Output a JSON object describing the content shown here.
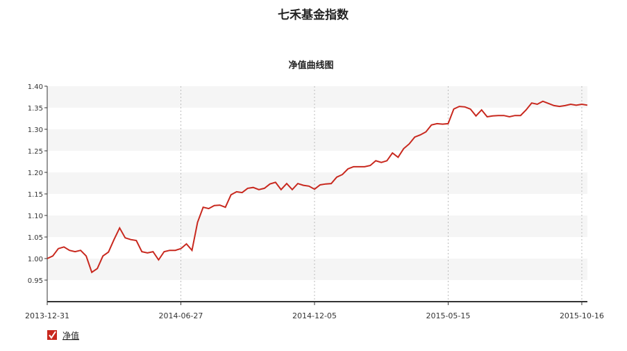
{
  "chart_data": {
    "type": "line",
    "title": "七禾基金指数",
    "subtitle": "净值曲线图",
    "categories": [
      "2013-12-31",
      null,
      null,
      null,
      null,
      null,
      null,
      null,
      null,
      null,
      null,
      null,
      null,
      null,
      null,
      null,
      null,
      null,
      null,
      null,
      null,
      null,
      null,
      null,
      "2014-06-27",
      null,
      null,
      null,
      null,
      null,
      null,
      null,
      null,
      null,
      null,
      null,
      null,
      null,
      null,
      null,
      null,
      null,
      null,
      null,
      null,
      null,
      null,
      null,
      "2014-12-05",
      null,
      null,
      null,
      null,
      null,
      null,
      null,
      null,
      null,
      null,
      null,
      null,
      null,
      null,
      null,
      null,
      null,
      null,
      null,
      null,
      null,
      null,
      null,
      "2015-05-15",
      null,
      null,
      null,
      null,
      null,
      null,
      null,
      null,
      null,
      null,
      null,
      null,
      null,
      null,
      null,
      null,
      null,
      null,
      null,
      null,
      null,
      null,
      null,
      "2015-10-16",
      null
    ],
    "series": [
      {
        "name": "净值",
        "color": "#c8281e",
        "values": [
          1.0,
          1.006,
          1.023,
          1.027,
          1.019,
          1.016,
          1.019,
          1.006,
          0.968,
          0.977,
          1.006,
          1.015,
          1.044,
          1.071,
          1.048,
          1.044,
          1.042,
          1.016,
          1.013,
          1.016,
          0.997,
          1.016,
          1.019,
          1.019,
          1.023,
          1.034,
          1.019,
          1.084,
          1.119,
          1.116,
          1.123,
          1.124,
          1.119,
          1.148,
          1.155,
          1.153,
          1.163,
          1.165,
          1.16,
          1.163,
          1.173,
          1.177,
          1.16,
          1.174,
          1.16,
          1.174,
          1.17,
          1.168,
          1.161,
          1.171,
          1.173,
          1.174,
          1.189,
          1.195,
          1.208,
          1.213,
          1.213,
          1.213,
          1.216,
          1.227,
          1.223,
          1.227,
          1.245,
          1.235,
          1.255,
          1.266,
          1.282,
          1.287,
          1.294,
          1.31,
          1.313,
          1.312,
          1.313,
          1.347,
          1.353,
          1.352,
          1.347,
          1.331,
          1.345,
          1.329,
          1.331,
          1.332,
          1.332,
          1.329,
          1.332,
          1.332,
          1.345,
          1.361,
          1.358,
          1.365,
          1.36,
          1.355,
          1.353,
          1.355,
          1.358,
          1.356,
          1.358,
          1.356
        ]
      }
    ],
    "ylim": [
      0.9,
      1.4
    ],
    "yticks": [
      0.95,
      {
        "value": 1,
        "label": "1.00"
      },
      1.05,
      {
        "value": 1.1,
        "label": "1.10"
      },
      1.15,
      {
        "value": 1.2,
        "label": "1.20"
      },
      1.25,
      {
        "value": 1.3,
        "label": "1.30"
      },
      1.35,
      {
        "value": 1.4,
        "label": "1.40"
      }
    ],
    "grid": true,
    "legend": "bottom-left"
  }
}
